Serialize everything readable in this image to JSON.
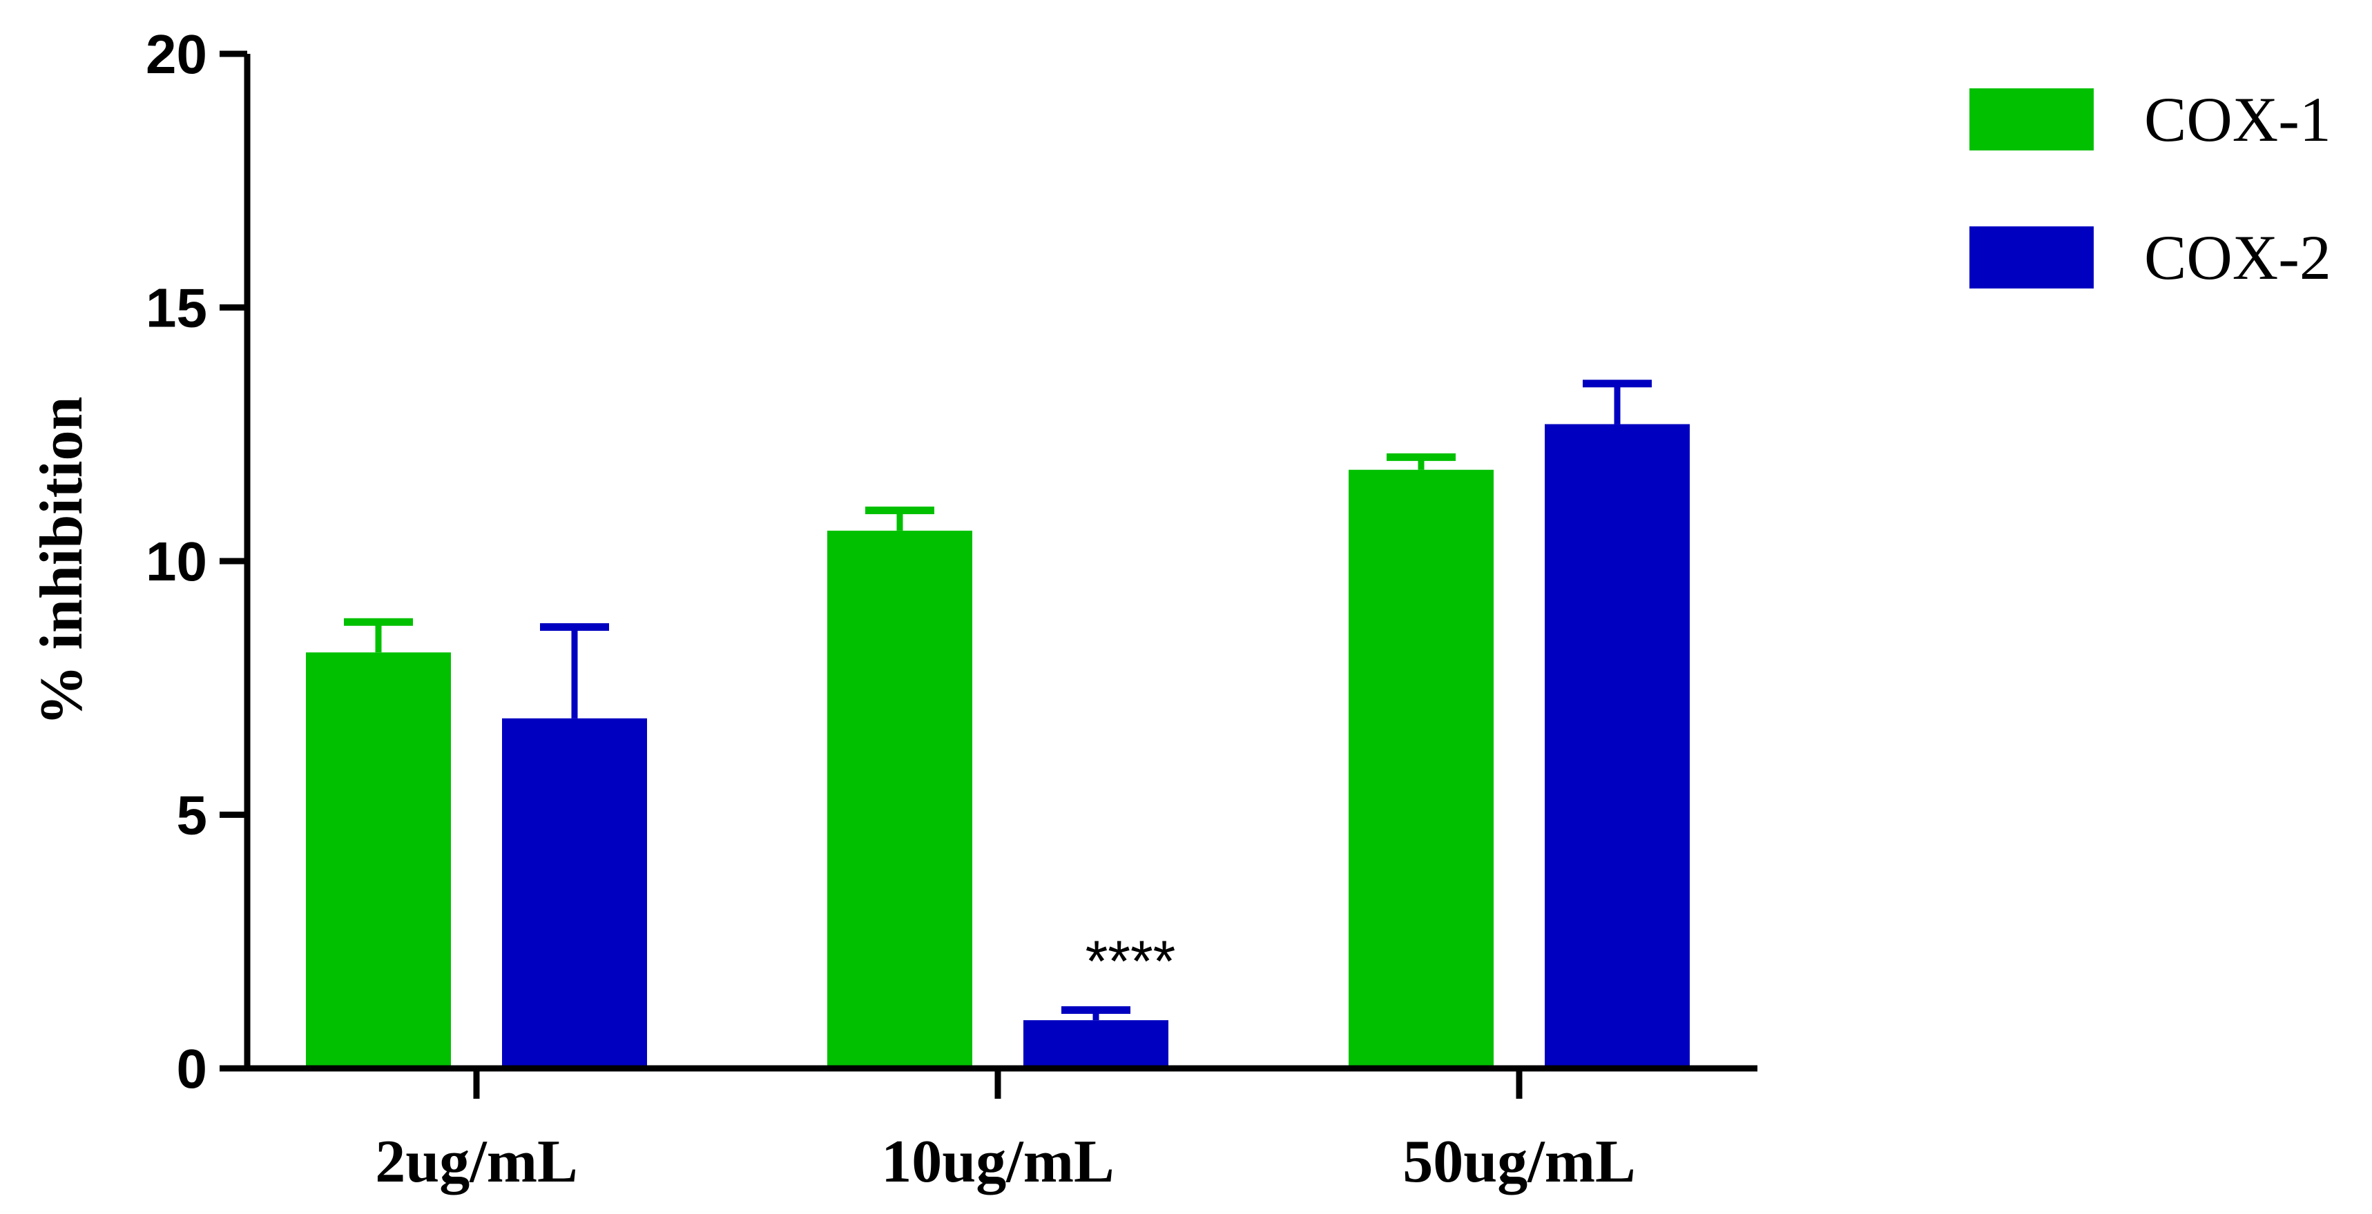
{
  "chart_data": {
    "type": "bar",
    "categories": [
      "2ug/mL",
      "10ug/mL",
      "50ug/mL"
    ],
    "series": [
      {
        "name": "COX-1",
        "color": "#00c000",
        "values": [
          8.2,
          10.6,
          11.8
        ],
        "errors": [
          0.6,
          0.4,
          0.25
        ]
      },
      {
        "name": "COX-2",
        "color": "#0000c0",
        "values": [
          6.9,
          0.95,
          12.7
        ],
        "errors": [
          1.8,
          0.2,
          0.8
        ]
      }
    ],
    "ylabel": "% inhibition",
    "xlabel": "",
    "ylim": [
      0,
      20
    ],
    "yticks": [
      "0",
      "5",
      "10",
      "15",
      "20"
    ],
    "ytick_values": [
      0,
      5,
      10,
      15,
      20
    ],
    "annotations": [
      {
        "text": "****",
        "category_index": 1,
        "series_index": 1
      }
    ],
    "legend_position": "top-right",
    "grid": false
  }
}
